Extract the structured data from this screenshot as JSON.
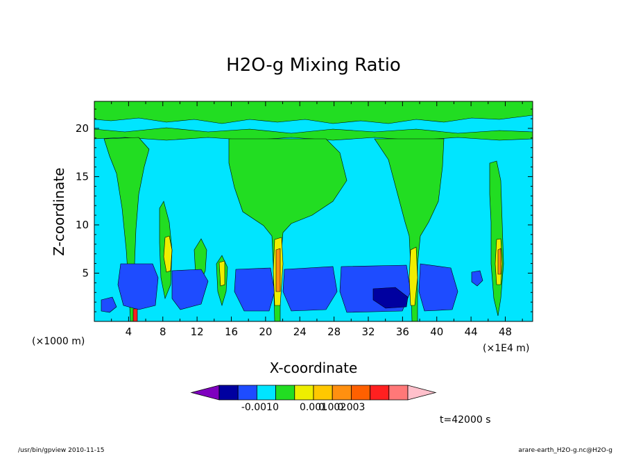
{
  "chart_data": {
    "type": "heatmap",
    "title": "H2O-g Mixing Ratio",
    "xlabel": "X-coordinate",
    "ylabel": "Z-coordinate",
    "x_unit": "(×1E4 m)",
    "y_unit": "(×1000 m)",
    "x_ticks": [
      "4",
      "8",
      "12",
      "16",
      "20",
      "24",
      "28",
      "32",
      "36",
      "40",
      "44",
      "48"
    ],
    "y_ticks": [
      "5",
      "10",
      "15",
      "20"
    ],
    "xlim": [
      0,
      51.2
    ],
    "ylim": [
      0,
      22.8
    ],
    "colorbar": {
      "colors": [
        "#7f00bf",
        "#0000a0",
        "#1e4cff",
        "#00e5ff",
        "#22dd22",
        "#eeee00",
        "#ffc800",
        "#ff9010",
        "#ff6000",
        "#ff2020",
        "#ff7878",
        "#ffc0cb"
      ],
      "tick_labels": [
        "-0.001",
        "0",
        "0.001",
        "0.002",
        "0.003"
      ]
    },
    "time_label": "t=42000 s",
    "annotations": {
      "left": "/usr/bin/gpview   2010-11-15",
      "right": "arare-earth_H2O-g.nc@H2O-g"
    }
  }
}
